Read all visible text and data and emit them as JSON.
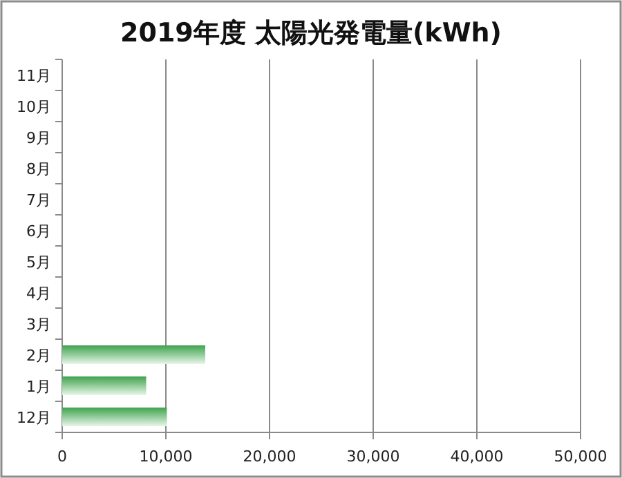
{
  "chart_data": {
    "type": "bar",
    "orientation": "horizontal",
    "title": "2019年度 太陽光発電量(kWh)",
    "categories": [
      "11月",
      "10月",
      "9月",
      "8月",
      "7月",
      "6月",
      "5月",
      "4月",
      "3月",
      "2月",
      "1月",
      "12月"
    ],
    "values": [
      null,
      null,
      null,
      null,
      null,
      null,
      null,
      null,
      null,
      13800,
      8100,
      10100
    ],
    "color": "#3fa34d",
    "xlim": [
      0,
      50000
    ],
    "xticks": [
      {
        "value": 0,
        "label": "0"
      },
      {
        "value": 10000,
        "label": "10,000"
      },
      {
        "value": 20000,
        "label": "20,000"
      },
      {
        "value": 30000,
        "label": "30,000"
      },
      {
        "value": 40000,
        "label": "40,000"
      },
      {
        "value": 50000,
        "label": "50,000"
      }
    ],
    "grid": "x"
  }
}
